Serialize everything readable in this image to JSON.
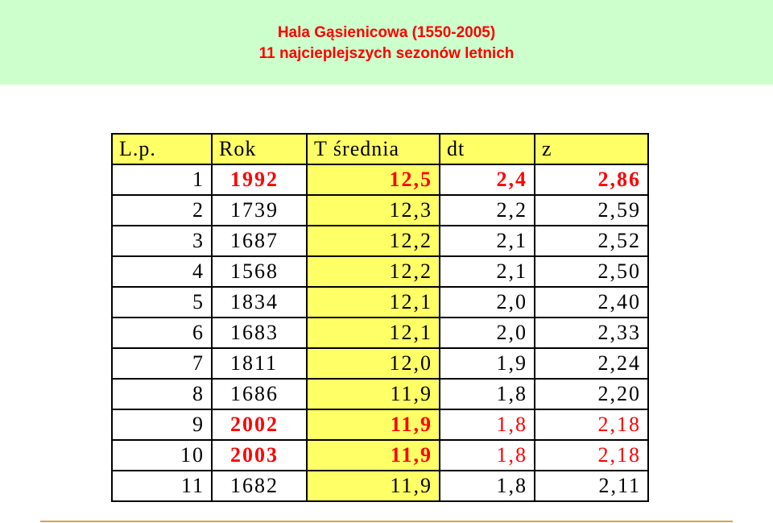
{
  "header": {
    "title": "Hala Gąsienicowa (1550-2005)",
    "subtitle": "11 najcieplejszych sezonów letnich"
  },
  "table": {
    "columns": [
      "L.p.",
      "Rok",
      "T średnia",
      "dt",
      "z"
    ],
    "rows": [
      [
        "1",
        "1992",
        "12,5",
        "2,4",
        "2,86"
      ],
      [
        "2",
        "1739",
        "12,3",
        "2,2",
        "2,59"
      ],
      [
        "3",
        "1687",
        "12,2",
        "2,1",
        "2,52"
      ],
      [
        "4",
        "1568",
        "12,2",
        "2,1",
        "2,50"
      ],
      [
        "5",
        "1834",
        "12,1",
        "2,0",
        "2,40"
      ],
      [
        "6",
        "1683",
        "12,1",
        "2,0",
        "2,33"
      ],
      [
        "7",
        "1811",
        "12,0",
        "1,9",
        "2,24"
      ],
      [
        "8",
        "1686",
        "11,9",
        "1,8",
        "2,20"
      ],
      [
        "9",
        "2002",
        "11,9",
        "1,8",
        "2,18"
      ],
      [
        "10",
        "2003",
        "11,9",
        "1,8",
        "2,18"
      ],
      [
        "11",
        "1682",
        "11,9",
        "1,8",
        "2,11"
      ]
    ]
  }
}
